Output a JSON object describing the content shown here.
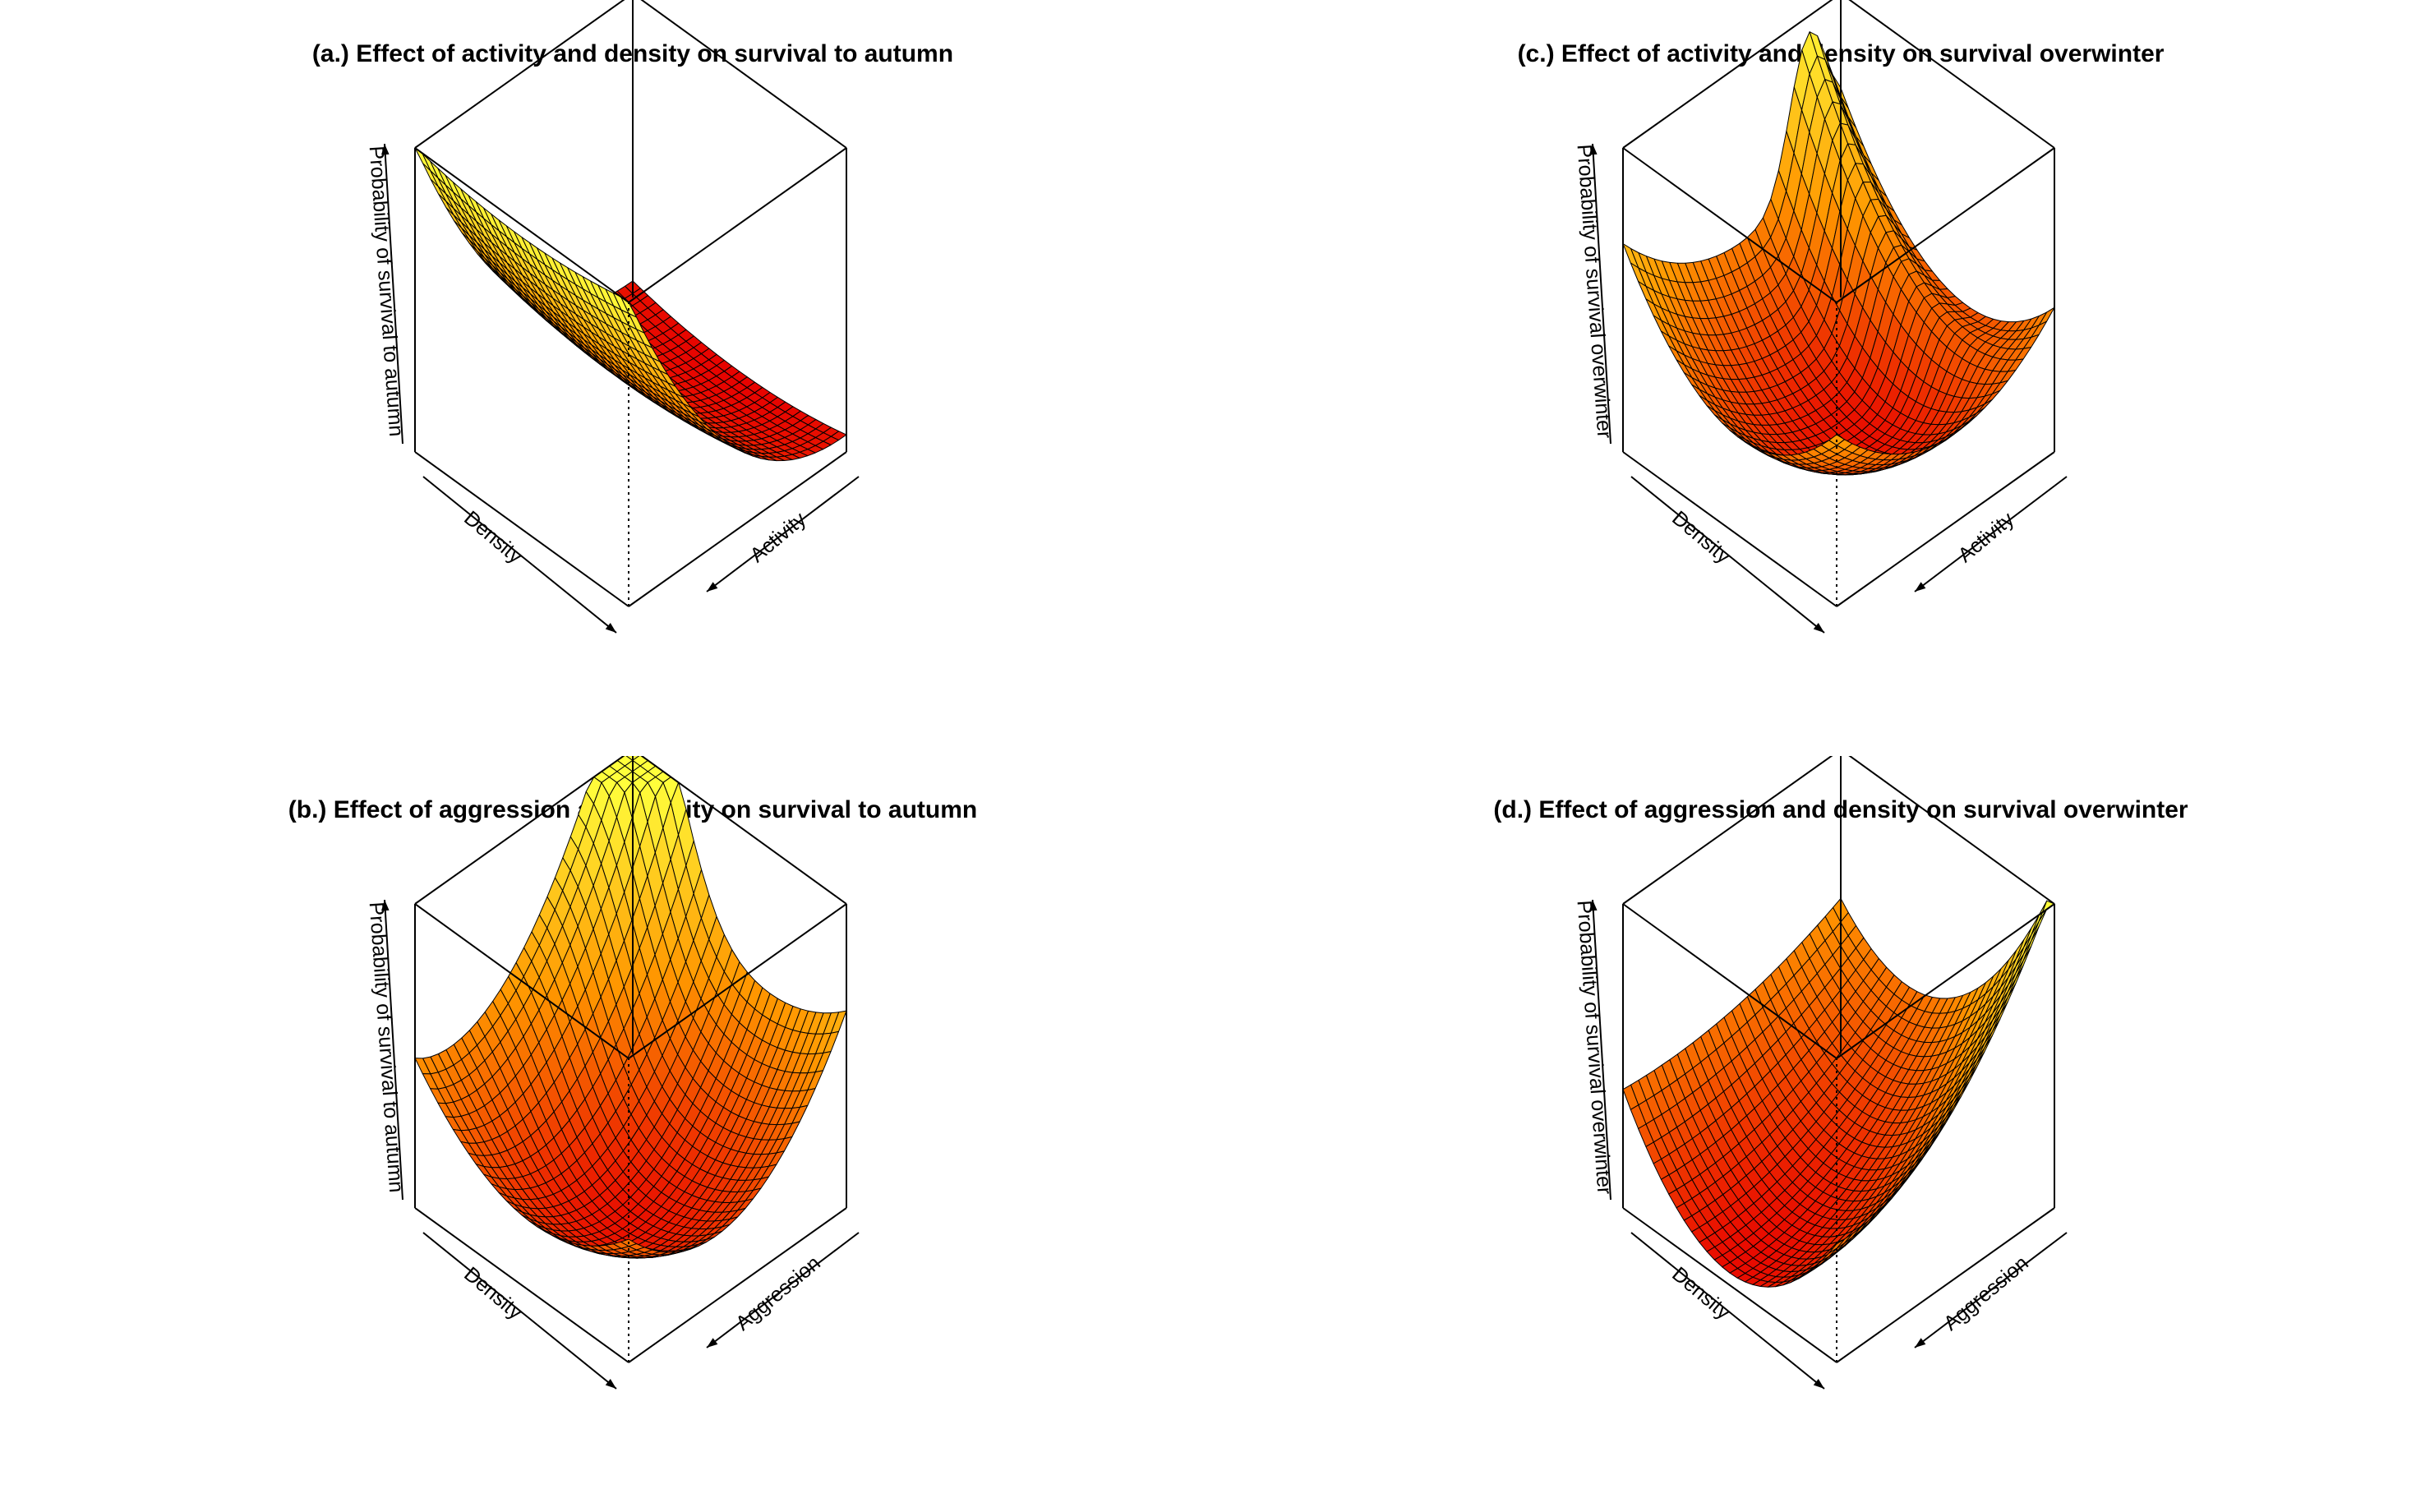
{
  "colors": {
    "surface_low": "#e60000",
    "surface_high": "#ffff3c",
    "mesh_line": "#000000",
    "axis": "#000000",
    "background": "#ffffff"
  },
  "chart_data": [
    {
      "id": "a",
      "type": "surface",
      "title": "(a.) Effect of activity and density on survival to autumn",
      "xlabel": "Density",
      "ylabel": "Activity",
      "zlabel": "Probability of survival to autumn",
      "tick_labels": "none",
      "z_surface_shape": "parabolic trough in density, rising toward low activity",
      "grid_resolution": 28,
      "xlim": [
        0,
        1
      ],
      "ylim": [
        0,
        1
      ],
      "zlim": [
        0,
        1
      ]
    },
    {
      "id": "b",
      "type": "surface",
      "title": "(b.) Effect of aggression and density on survival to autumn",
      "xlabel": "Density",
      "ylabel": "Aggression",
      "zlabel": "Probability of survival to autumn",
      "tick_labels": "none",
      "z_surface_shape": "saddle with a ridge at low density / high aggression",
      "grid_resolution": 28,
      "xlim": [
        0,
        1
      ],
      "ylim": [
        0,
        1
      ],
      "zlim": [
        0,
        1
      ]
    },
    {
      "id": "c",
      "type": "surface",
      "title": "(c.) Effect of activity and density on survival overwinter",
      "xlabel": "Density",
      "ylabel": "Activity",
      "zlabel": "Probability of survival overwinter",
      "tick_labels": "none",
      "z_surface_shape": "deep basin with a folded ridge at high activity",
      "grid_resolution": 28,
      "xlim": [
        0,
        1
      ],
      "ylim": [
        0,
        1
      ],
      "zlim": [
        0,
        1
      ]
    },
    {
      "id": "d",
      "type": "surface",
      "title": "(d.) Effect of aggression and density on survival overwinter",
      "xlabel": "Density",
      "ylabel": "Aggression",
      "zlabel": "Probability of survival overwinter",
      "tick_labels": "none",
      "z_surface_shape": "trough in density with a bump at high aggression",
      "grid_resolution": 28,
      "xlim": [
        0,
        1
      ],
      "ylim": [
        0,
        1
      ],
      "zlim": [
        0,
        1
      ]
    }
  ]
}
